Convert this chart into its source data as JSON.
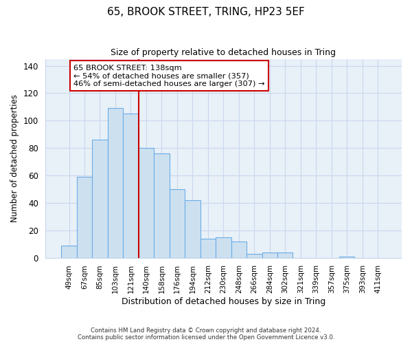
{
  "title": "65, BROOK STREET, TRING, HP23 5EF",
  "subtitle": "Size of property relative to detached houses in Tring",
  "xlabel": "Distribution of detached houses by size in Tring",
  "ylabel": "Number of detached properties",
  "bar_labels": [
    "49sqm",
    "67sqm",
    "85sqm",
    "103sqm",
    "121sqm",
    "140sqm",
    "158sqm",
    "176sqm",
    "194sqm",
    "212sqm",
    "230sqm",
    "248sqm",
    "266sqm",
    "284sqm",
    "302sqm",
    "321sqm",
    "339sqm",
    "357sqm",
    "375sqm",
    "393sqm",
    "411sqm"
  ],
  "bar_heights": [
    9,
    59,
    86,
    109,
    105,
    80,
    76,
    50,
    42,
    14,
    15,
    12,
    3,
    4,
    4,
    0,
    0,
    0,
    1,
    0,
    0
  ],
  "bar_color": "#cde0f0",
  "bar_edge_color": "#6aace6",
  "vline_color": "#cc0000",
  "vline_at_index": 5,
  "annotation_title": "65 BROOK STREET: 138sqm",
  "annotation_line1": "← 54% of detached houses are smaller (357)",
  "annotation_line2": "46% of semi-detached houses are larger (307) →",
  "annotation_box_color": "#ffffff",
  "annotation_box_edge": "#cc0000",
  "ylim": [
    0,
    145
  ],
  "yticks": [
    0,
    20,
    40,
    60,
    80,
    100,
    120,
    140
  ],
  "grid_color": "#c8d8ec",
  "background_color": "#ffffff",
  "plot_bg_color": "#e8f0f8",
  "footnote1": "Contains HM Land Registry data © Crown copyright and database right 2024.",
  "footnote2": "Contains public sector information licensed under the Open Government Licence v3.0."
}
